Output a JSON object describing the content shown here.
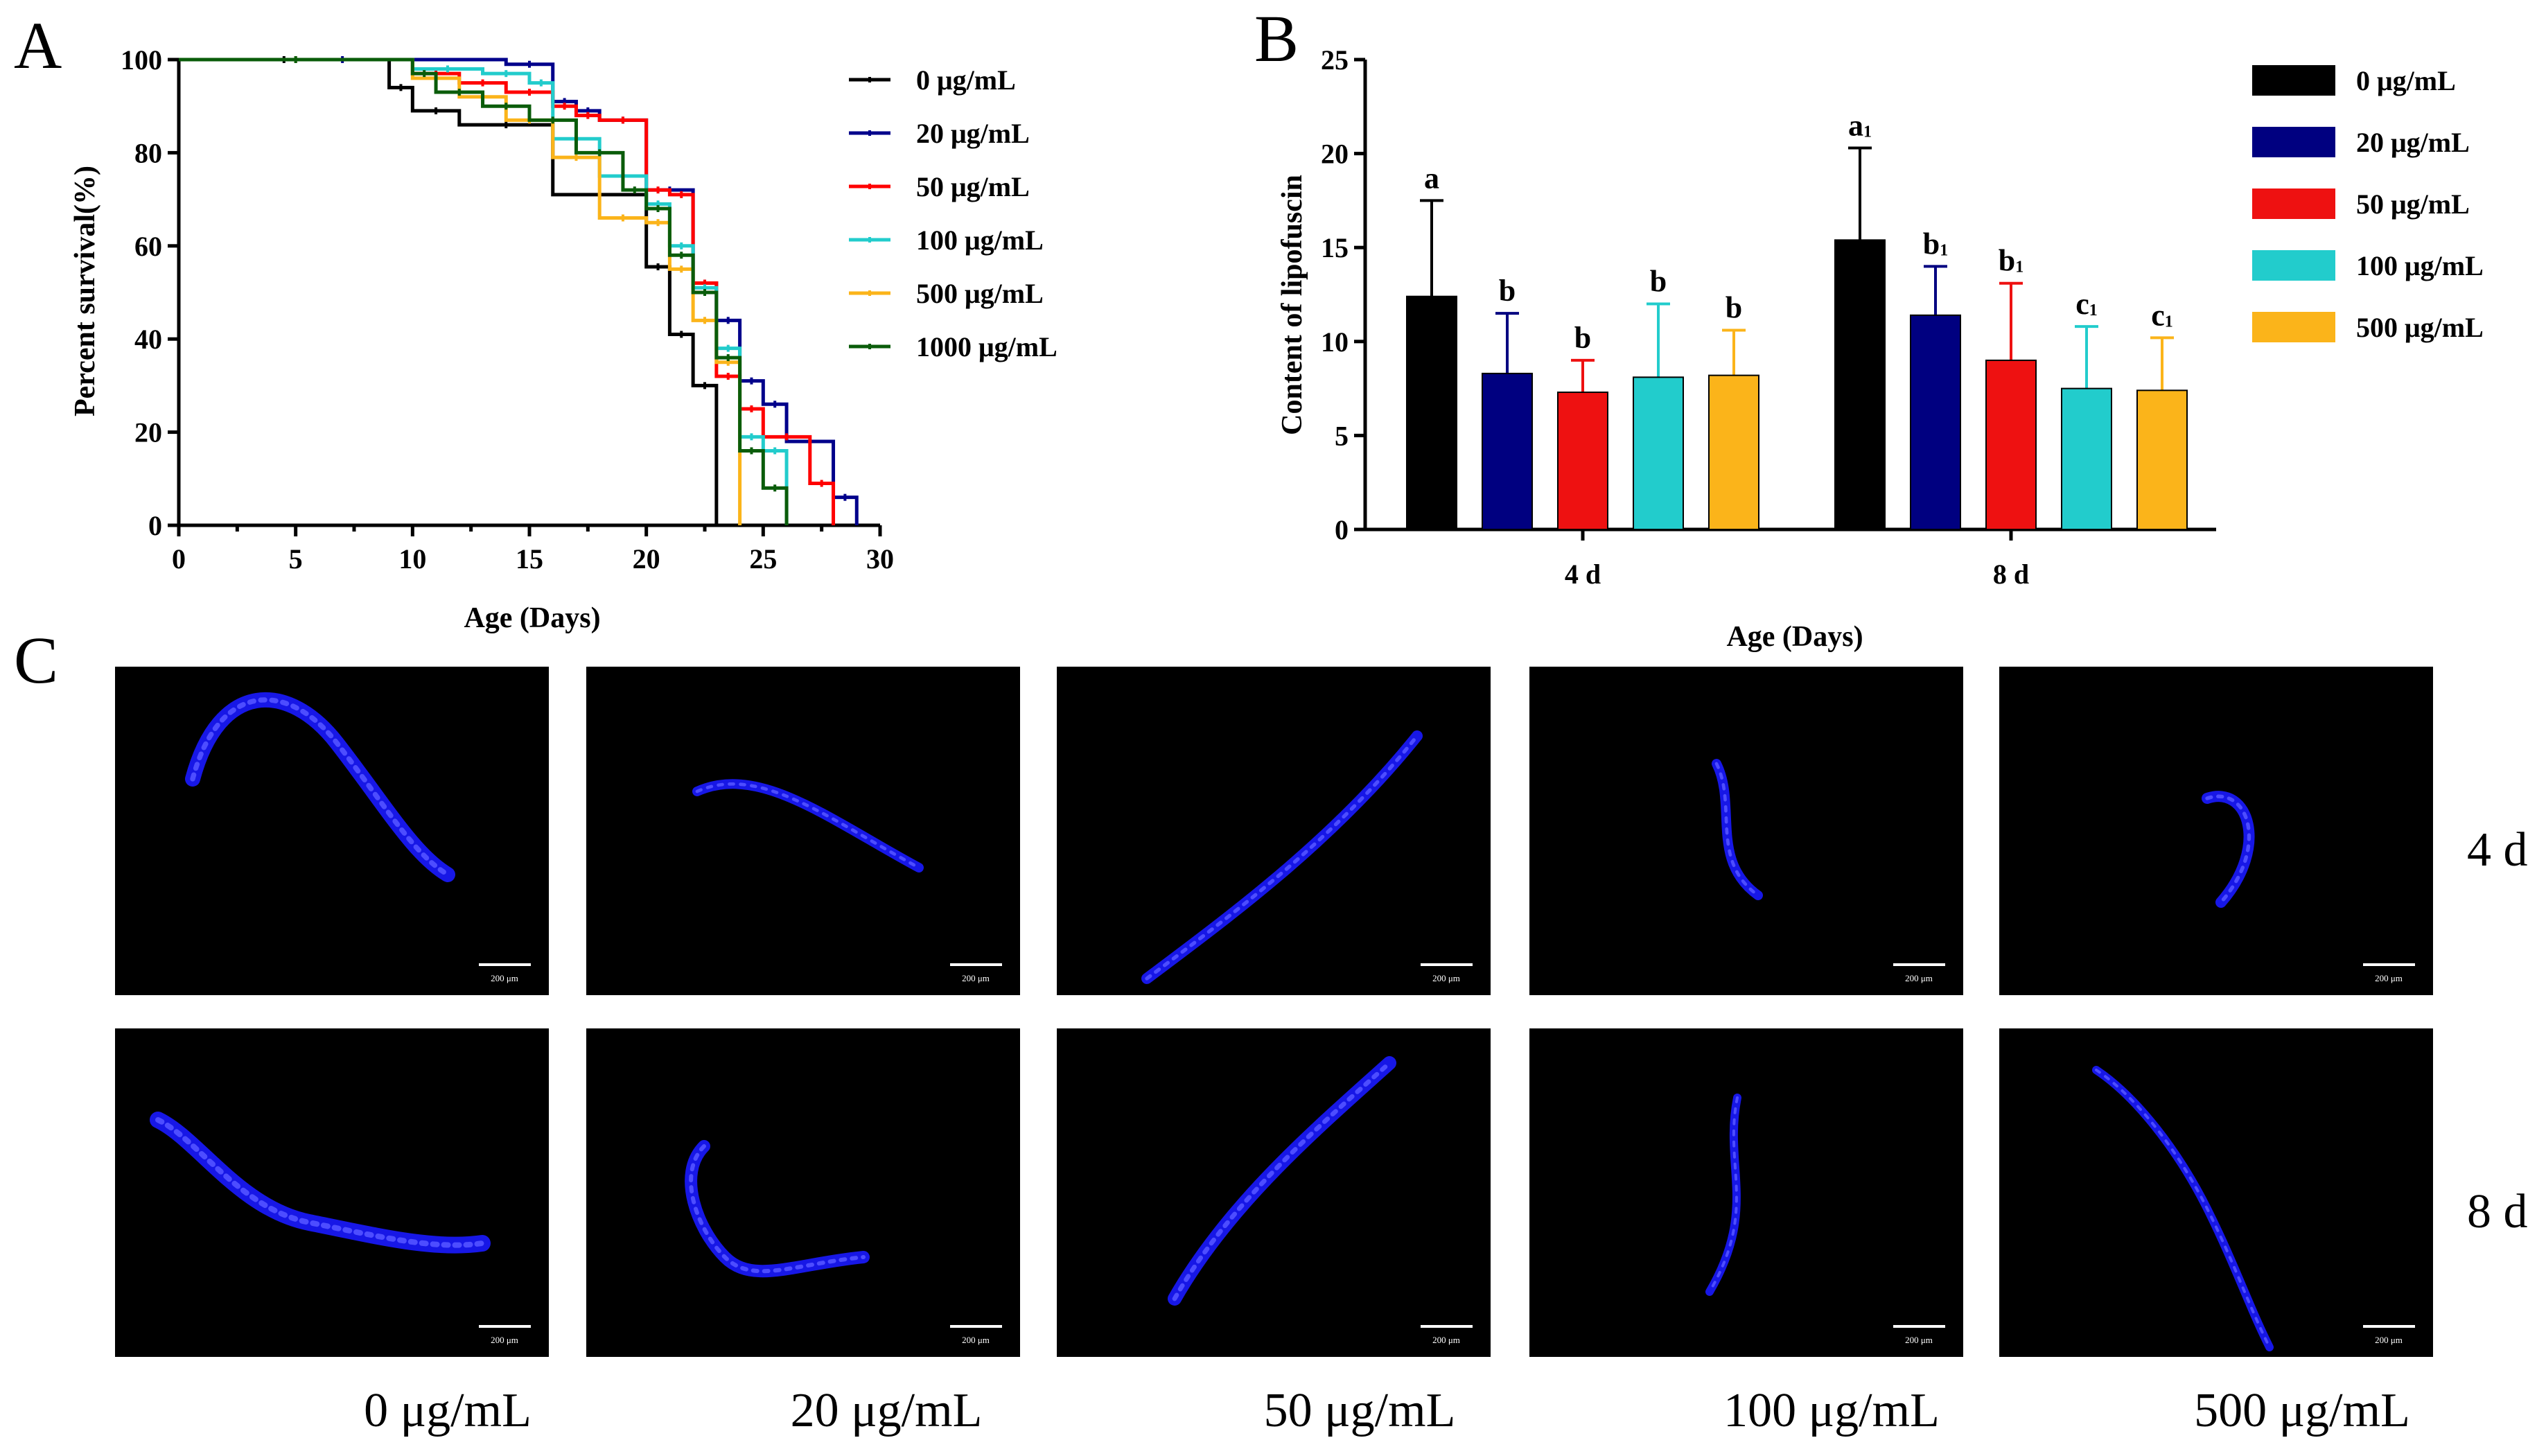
{
  "panels": {
    "a": "A",
    "b": "B",
    "c": "C"
  },
  "chart_data": [
    {
      "type": "line",
      "subtype": "kaplan-meier",
      "panel": "A",
      "xlabel": "Age (Days)",
      "ylabel": "Percent survival(%)",
      "xlim": [
        0,
        30
      ],
      "ylim": [
        0,
        100
      ],
      "xticks": [
        0,
        5,
        10,
        15,
        20,
        25,
        30
      ],
      "yticks": [
        0,
        20,
        40,
        60,
        80,
        100
      ],
      "legend_position": "right",
      "series": [
        {
          "name": "0 μg/mL",
          "color": "#000000",
          "steps": [
            [
              0,
              100
            ],
            [
              9,
              94
            ],
            [
              10,
              89
            ],
            [
              12,
              86
            ],
            [
              16,
              71
            ],
            [
              20,
              55.5
            ],
            [
              21,
              41
            ],
            [
              22,
              30
            ],
            [
              23,
              0
            ]
          ]
        },
        {
          "name": "20 μg/mL",
          "color": "#00008b",
          "steps": [
            [
              0,
              100
            ],
            [
              14,
              99
            ],
            [
              16,
              91
            ],
            [
              17,
              89
            ],
            [
              18,
              87
            ],
            [
              20,
              72
            ],
            [
              22,
              52
            ],
            [
              23,
              44
            ],
            [
              24,
              31
            ],
            [
              25,
              26
            ],
            [
              26,
              18
            ],
            [
              28,
              6
            ],
            [
              29,
              0
            ]
          ]
        },
        {
          "name": "50 μg/mL",
          "color": "#ff0000",
          "steps": [
            [
              0,
              100
            ],
            [
              10,
              97
            ],
            [
              12,
              95
            ],
            [
              14,
              93
            ],
            [
              16,
              90
            ],
            [
              17,
              88
            ],
            [
              18,
              87
            ],
            [
              20,
              72
            ],
            [
              21,
              71
            ],
            [
              22,
              52
            ],
            [
              23,
              32
            ],
            [
              24,
              25
            ],
            [
              25,
              19
            ],
            [
              27,
              9
            ],
            [
              28,
              0
            ]
          ]
        },
        {
          "name": "100 μg/mL",
          "color": "#22cccc",
          "steps": [
            [
              0,
              100
            ],
            [
              10,
              98
            ],
            [
              13,
              97
            ],
            [
              15,
              95
            ],
            [
              16,
              83
            ],
            [
              18,
              75
            ],
            [
              20,
              69
            ],
            [
              21,
              60
            ],
            [
              22,
              51
            ],
            [
              23,
              38
            ],
            [
              24,
              19
            ],
            [
              25,
              16
            ],
            [
              26,
              0
            ]
          ]
        },
        {
          "name": "500 μg/mL",
          "color": "#fbb41a",
          "steps": [
            [
              0,
              100
            ],
            [
              10,
              96
            ],
            [
              12,
              92
            ],
            [
              14,
              87
            ],
            [
              16,
              79
            ],
            [
              18,
              66
            ],
            [
              20,
              65
            ],
            [
              21,
              55
            ],
            [
              22,
              44
            ],
            [
              23,
              35
            ],
            [
              24,
              0
            ]
          ]
        },
        {
          "name": "1000 μg/mL",
          "color": "#0a5c0a",
          "steps": [
            [
              0,
              100
            ],
            [
              10,
              97
            ],
            [
              11,
              93
            ],
            [
              13,
              90
            ],
            [
              15,
              87
            ],
            [
              17,
              80
            ],
            [
              19,
              72
            ],
            [
              20,
              68
            ],
            [
              21,
              58
            ],
            [
              22,
              50
            ],
            [
              23,
              36
            ],
            [
              24,
              16
            ],
            [
              25,
              8
            ],
            [
              26,
              0
            ]
          ]
        }
      ]
    },
    {
      "type": "bar",
      "panel": "B",
      "xlabel": "Age (Days)",
      "ylabel": "Content of lipofuscin",
      "ylim": [
        0,
        25
      ],
      "yticks": [
        0,
        5,
        10,
        15,
        20,
        25
      ],
      "categories": [
        "4 d",
        "8 d"
      ],
      "legend_position": "right",
      "series": [
        {
          "name": "0 μg/mL",
          "color": "#000000",
          "values": [
            12.4,
            15.4
          ],
          "errors": [
            5.1,
            4.9
          ],
          "letters": [
            "a",
            "a1"
          ]
        },
        {
          "name": "20 μg/mL",
          "color": "#000080",
          "values": [
            8.3,
            11.4
          ],
          "errors": [
            3.2,
            2.6
          ],
          "letters": [
            "b",
            "b1"
          ]
        },
        {
          "name": "50 μg/mL",
          "color": "#ee1111",
          "values": [
            7.3,
            9.0
          ],
          "errors": [
            1.7,
            4.1
          ],
          "letters": [
            "b",
            "b1"
          ]
        },
        {
          "name": "100 μg/mL",
          "color": "#22cccc",
          "values": [
            8.1,
            7.5
          ],
          "errors": [
            3.9,
            3.3
          ],
          "letters": [
            "b",
            "c1"
          ]
        },
        {
          "name": "500 μg/mL",
          "color": "#fbb41a",
          "values": [
            8.2,
            7.4
          ],
          "errors": [
            2.4,
            2.8
          ],
          "letters": [
            "b",
            "c1"
          ]
        }
      ]
    }
  ],
  "panel_c": {
    "column_labels": [
      "0 μg/mL",
      "20 μg/mL",
      "50 μg/mL",
      "100 μg/mL",
      "500 μg/mL"
    ],
    "row_labels": [
      "4 d",
      "8 d"
    ],
    "scale_bar": "200 μm"
  }
}
